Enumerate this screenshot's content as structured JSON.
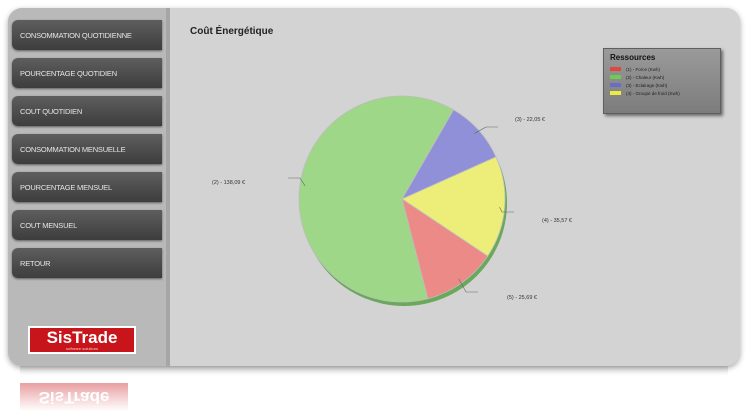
{
  "sidebar": {
    "items": [
      {
        "label": "CONSOMMATION QUOTIDIENNE"
      },
      {
        "label": "POURCENTAGE QUOTIDIEN"
      },
      {
        "label": "COUT QUOTIDIEN"
      },
      {
        "label": "CONSOMMATION MENSUELLE"
      },
      {
        "label": "POURCENTAGE MENSUEL"
      },
      {
        "label": "COUT MENSUEL"
      },
      {
        "label": "RETOUR"
      }
    ],
    "logo": {
      "brand": "SisTrade",
      "tagline": "software solutions"
    }
  },
  "chart_data": {
    "type": "pie",
    "title": "Coût Énergétique",
    "legend_title": "Ressources",
    "legend_position": "top-right",
    "slices": [
      {
        "name": "Force (Kwh)",
        "value": 22.05,
        "label": "(3) - 22,05 €",
        "color": "#8f90d8"
      },
      {
        "name": "Eclairage (Kwh)",
        "value": 35.57,
        "label": "(4) - 35,57 €",
        "color": "#eded7a"
      },
      {
        "name": "Froid (Kwh)",
        "value": 25.69,
        "label": "(5) - 25,69 €",
        "color": "#ec8a87"
      },
      {
        "name": "Chaleur (Kwh)",
        "value": 138.09,
        "label": "(2) - 138,09 €",
        "color": "#9dd787"
      }
    ],
    "legend": [
      {
        "label": "(1) - Force (Kwh)",
        "color": "#e0483f"
      },
      {
        "label": "(2) - Chaleur (Kwh)",
        "color": "#6ccd4f"
      },
      {
        "label": "(3) - Eclairage (Kwh)",
        "color": "#6a6cc8"
      },
      {
        "label": "(4) - Groupe de froid (Kwh)",
        "color": "#ebeb43"
      }
    ]
  }
}
